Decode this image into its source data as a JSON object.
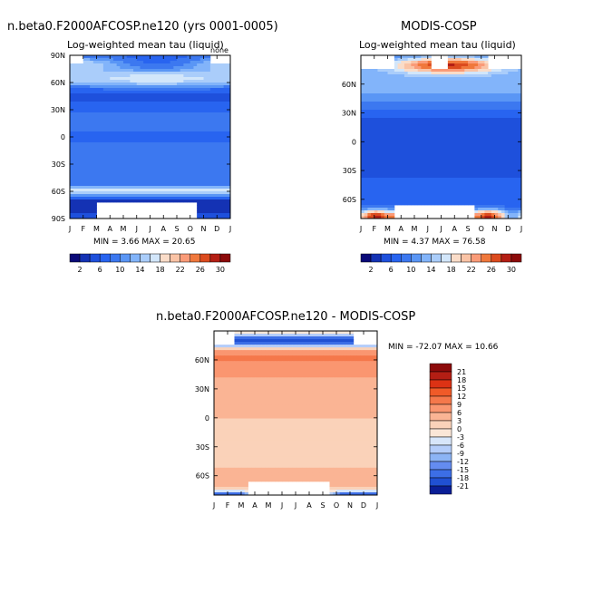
{
  "chart_data": [
    {
      "type": "heatmap",
      "title": "n.beta0.F2000AFCOSP.ne120 (yrs 0001-0005)",
      "subtitle": "Log-weighted mean tau (liquid)",
      "corner_label": "none",
      "stats": "MIN =    3.66  MAX =   20.65",
      "months": [
        "J",
        "F",
        "M",
        "A",
        "M",
        "J",
        "J",
        "A",
        "S",
        "O",
        "N",
        "D",
        "J"
      ],
      "lat_ticks": [
        "90N",
        "60N",
        "30N",
        "0",
        "30S",
        "60S",
        "90S"
      ],
      "colorbar_labels": [
        "2",
        "6",
        "10",
        "14",
        "18",
        "22",
        "26",
        "30"
      ],
      "x": "month (Jan to Jan)",
      "y": "latitude (90S to 90N)"
    },
    {
      "type": "heatmap",
      "title": "MODIS-COSP",
      "subtitle": "Log-weighted mean tau (liquid)",
      "stats": "MIN =    4.37  MAX =   76.58",
      "months": [
        "J",
        "F",
        "M",
        "A",
        "M",
        "J",
        "J",
        "A",
        "S",
        "O",
        "N",
        "D",
        "J"
      ],
      "lat_ticks": [
        "60N",
        "30N",
        "0",
        "30S",
        "60S"
      ],
      "colorbar_labels": [
        "2",
        "6",
        "10",
        "14",
        "18",
        "22",
        "26",
        "30"
      ]
    },
    {
      "type": "heatmap",
      "title": "n.beta0.F2000AFCOSP.ne120 - MODIS-COSP",
      "stats": "MIN = -72.07  MAX =   10.66",
      "months": [
        "J",
        "F",
        "M",
        "A",
        "M",
        "J",
        "J",
        "A",
        "S",
        "O",
        "N",
        "D",
        "J"
      ],
      "lat_ticks": [
        "60N",
        "30N",
        "0",
        "30S",
        "60S"
      ],
      "colorbar_labels": [
        "21",
        "18",
        "15",
        "12",
        "9",
        "6",
        "3",
        "0",
        "-3",
        "-6",
        "-9",
        "-12",
        "-15",
        "-18",
        "-21"
      ]
    }
  ],
  "colors": {
    "seq": [
      "#0a0a78",
      "#1432b4",
      "#1e50dc",
      "#2864f0",
      "#3c78f0",
      "#5a96f5",
      "#82b4fa",
      "#aacdfa",
      "#d2e6fa",
      "#fadcc8",
      "#fac3a5",
      "#fa9b78",
      "#f0783c",
      "#dc4b1e",
      "#b41e14",
      "#8c0a0a"
    ],
    "div": [
      "#8c0a0a",
      "#b41e14",
      "#dc3214",
      "#f05a28",
      "#f5784b",
      "#fa9670",
      "#fab494",
      "#fad2b9",
      "#fae6d7",
      "#d7e6fa",
      "#b4cdfa",
      "#8cb4f5",
      "#648cf0",
      "#3c6ee6",
      "#2050d2",
      "#0a1e96"
    ]
  }
}
